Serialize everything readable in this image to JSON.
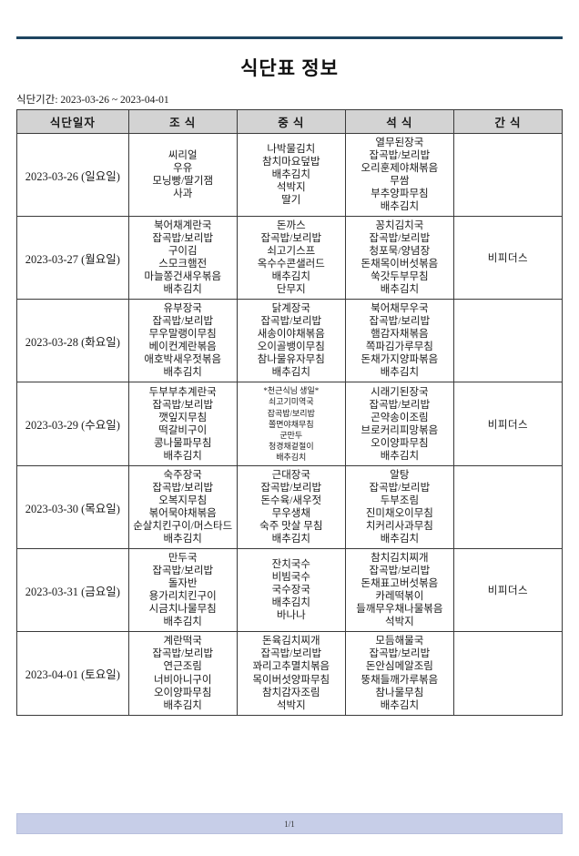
{
  "title": "식단표 정보",
  "period_label": "식단기간: 2023-03-26 ~ 2023-04-01",
  "table": {
    "headers": [
      "식단일자",
      "조 식",
      "중 식",
      "석 식",
      "간 식"
    ],
    "rows": [
      {
        "date": "2023-03-26 (일요일)",
        "breakfast": [
          "씨리얼",
          "우유",
          "모닝빵/딸기잼",
          "사과"
        ],
        "lunch": [
          "나박물김치",
          "참치마요덮밥",
          "배추김치",
          "석박지",
          "딸기"
        ],
        "dinner": [
          "열무된장국",
          "잡곡밥/보리밥",
          "오리훈제야채볶음",
          "무쌈",
          "부추양파무침",
          "배추김치"
        ],
        "snack": ""
      },
      {
        "date": "2023-03-27 (월요일)",
        "breakfast": [
          "북어채계란국",
          "잡곡밥/보리밥",
          "구이김",
          "스모크햄전",
          "마늘쫑건새우볶음",
          "배추김치"
        ],
        "lunch": [
          "돈까스",
          "잡곡밥/보리밥",
          "쇠고기스프",
          "옥수수콘샐러드",
          "배추김치",
          "단무지"
        ],
        "dinner": [
          "꽁치김치국",
          "잡곡밥/보리밥",
          "청포묵/양념장",
          "돈채목이버섯볶음",
          "쑥갓두부무침",
          "배추김치"
        ],
        "snack": "비피더스"
      },
      {
        "date": "2023-03-28 (화요일)",
        "breakfast": [
          "유부장국",
          "잡곡밥/보리밥",
          "무우말랭이무침",
          "베이컨계란볶음",
          "애호박새우젓볶음",
          "배추김치"
        ],
        "lunch": [
          "닭계장국",
          "잡곡밥/보리밥",
          "새송이야채볶음",
          "오이골뱅이무침",
          "참나물유자무침",
          "배추김치"
        ],
        "dinner": [
          "북어채무우국",
          "잡곡밥/보리밥",
          "햄감자채볶음",
          "쪽파김가루무침",
          "돈채가지양파볶음",
          "배추김치"
        ],
        "snack": ""
      },
      {
        "date": "2023-03-29 (수요일)",
        "breakfast": [
          "두부부추계란국",
          "잡곡밥/보리밥",
          "깻잎지무침",
          "떡갈비구이",
          "콩나물파무침",
          "배추김치"
        ],
        "lunch": [
          "*천근식님 생일*",
          "쇠고기미역국",
          "잡곡밥/보리밥",
          "쫄면야채무침",
          "군만두",
          "청경채겉절이",
          "배추김치"
        ],
        "dinner": [
          "시래기된장국",
          "잡곡밥/보리밥",
          "곤약송이조림",
          "브로커리피망볶음",
          "오이양파무침",
          "배추김치"
        ],
        "snack": "비피더스"
      },
      {
        "date": "2023-03-30 (목요일)",
        "breakfast": [
          "숙주장국",
          "잡곡밥/보리밥",
          "오복지무침",
          "볶어묵야채볶음",
          "순살치킨구이/머스타드",
          "배추김치"
        ],
        "lunch": [
          "근대장국",
          "잡곡밥/보리밥",
          "돈수육/새우젓",
          "무우생채",
          "숙주 맛살 무침",
          "배추김치"
        ],
        "dinner": [
          "알탕",
          "잡곡밥/보리밥",
          "두부조림",
          "진미채오이무침",
          "치커리사과무침",
          "배추김치"
        ],
        "snack": ""
      },
      {
        "date": "2023-03-31 (금요일)",
        "breakfast": [
          "만두국",
          "잡곡밥/보리밥",
          "돌자반",
          "용가리치킨구이",
          "시금치나물무침",
          "배추김치"
        ],
        "lunch": [
          "잔치국수",
          "비빔국수",
          "국수장국",
          "배추김치",
          "바나나"
        ],
        "dinner": [
          "참치김치찌개",
          "잡곡밥/보리밥",
          "돈채표고버섯볶음",
          "카레떡볶이",
          "들깨무우채나물볶음",
          "석박지"
        ],
        "snack": "비피더스"
      },
      {
        "date": "2023-04-01 (토요일)",
        "breakfast": [
          "계란떡국",
          "잡곡밥/보리밥",
          "연근조림",
          "너비아니구이",
          "오이양파무침",
          "배추김치"
        ],
        "lunch": [
          "돈육김치찌개",
          "잡곡밥/보리밥",
          "꽈리고추멸치볶음",
          "목이버섯양파무침",
          "참치감자조림",
          "석박지"
        ],
        "dinner": [
          "모듬해물국",
          "잡곡밥/보리밥",
          "돈안심메알조림",
          "뚱채들깨가루볶음",
          "참나물무침",
          "배추김치"
        ],
        "snack": ""
      }
    ]
  },
  "footer": {
    "page": "1/1"
  },
  "colors": {
    "rule": "#1e4560",
    "header_bg": "#d3d3d3",
    "footer_bg": "#c7cee8"
  }
}
